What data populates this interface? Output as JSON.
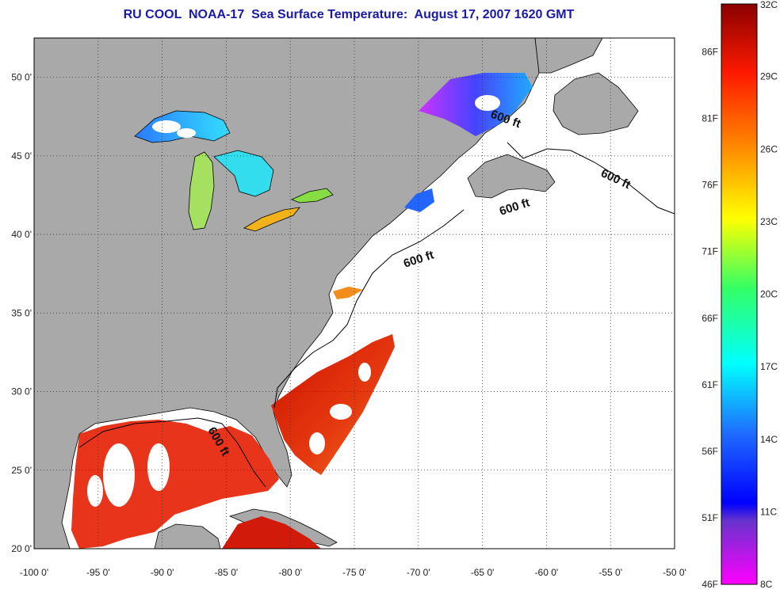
{
  "title": "RU COOL  NOAA-17  Sea Surface Temperature:  August 17, 2007 1620 GMT",
  "colors": {
    "land": "#a9a9a9",
    "ocean_nodata": "#ffffff",
    "coast": "#000000",
    "accent_title": "#1a1aa8"
  },
  "map": {
    "lon_ticks": [
      "-100 0'",
      "-95 0'",
      "-90 0'",
      "-85 0'",
      "-80 0'",
      "-75 0'",
      "-70 0'",
      "-65 0'",
      "-60 0'",
      "-55 0'",
      "-50 0'"
    ],
    "lat_ticks": [
      "50 0'",
      "45 0'",
      "40 0'",
      "35 0'",
      "30 0'",
      "25 0'",
      "20 0'"
    ],
    "lon_range": [
      -100,
      -50
    ],
    "lat_range": [
      20,
      52.5
    ],
    "grid": "dotted",
    "isobath_labels": [
      "600 ft",
      "600 ft",
      "600 ft",
      "600 ft",
      "600 ft"
    ]
  },
  "colorbar": {
    "celsius_labels": [
      "32C",
      "29C",
      "26C",
      "23C",
      "20C",
      "17C",
      "14C",
      "11C",
      "8C"
    ],
    "fahrenheit_labels": [
      "86F",
      "81F",
      "76F",
      "71F",
      "66F",
      "61F",
      "56F",
      "51F",
      "46F"
    ],
    "range_c": [
      8,
      32
    ],
    "range_f": [
      46,
      89.6
    ]
  }
}
